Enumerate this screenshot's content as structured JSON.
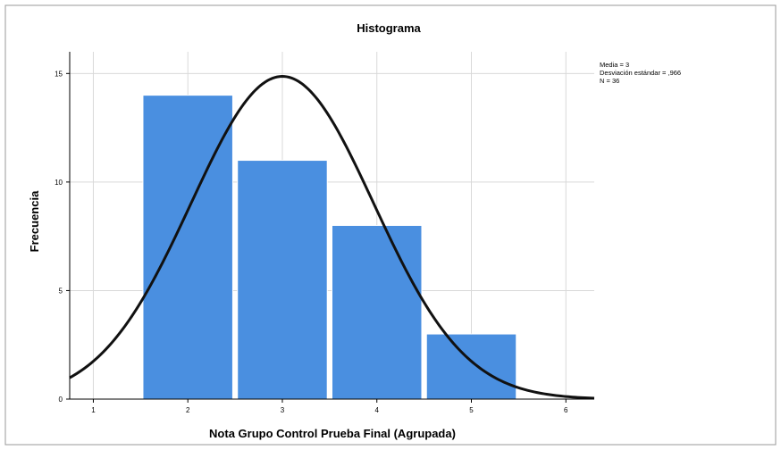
{
  "chart_data": {
    "type": "bar",
    "title": "Histograma",
    "xlabel": "Nota Grupo Control Prueba Final (Agrupada)",
    "ylabel": "Frecuencia",
    "x_ticks": [
      1,
      2,
      3,
      4,
      5,
      6
    ],
    "y_ticks": [
      0,
      5,
      10,
      15
    ],
    "xlim": [
      0.75,
      6.3
    ],
    "ylim": [
      0,
      16
    ],
    "bins": [
      {
        "center": 2,
        "value": 14
      },
      {
        "center": 3,
        "value": 11
      },
      {
        "center": 4,
        "value": 8
      },
      {
        "center": 5,
        "value": 3
      }
    ],
    "bar_width": 0.95,
    "normal_curve": {
      "mean": 3,
      "sd": 0.966,
      "n": 36,
      "bin_width": 1
    },
    "stats_text": [
      "Media = 3",
      "Desviación estándar = ,966",
      "N = 36"
    ],
    "grid": true,
    "colors": {
      "bar": "#4a8fe0",
      "bar_edge": "#ffffff",
      "curve": "#111111",
      "grid": "#d9d9d9",
      "axis": "#000000"
    }
  }
}
